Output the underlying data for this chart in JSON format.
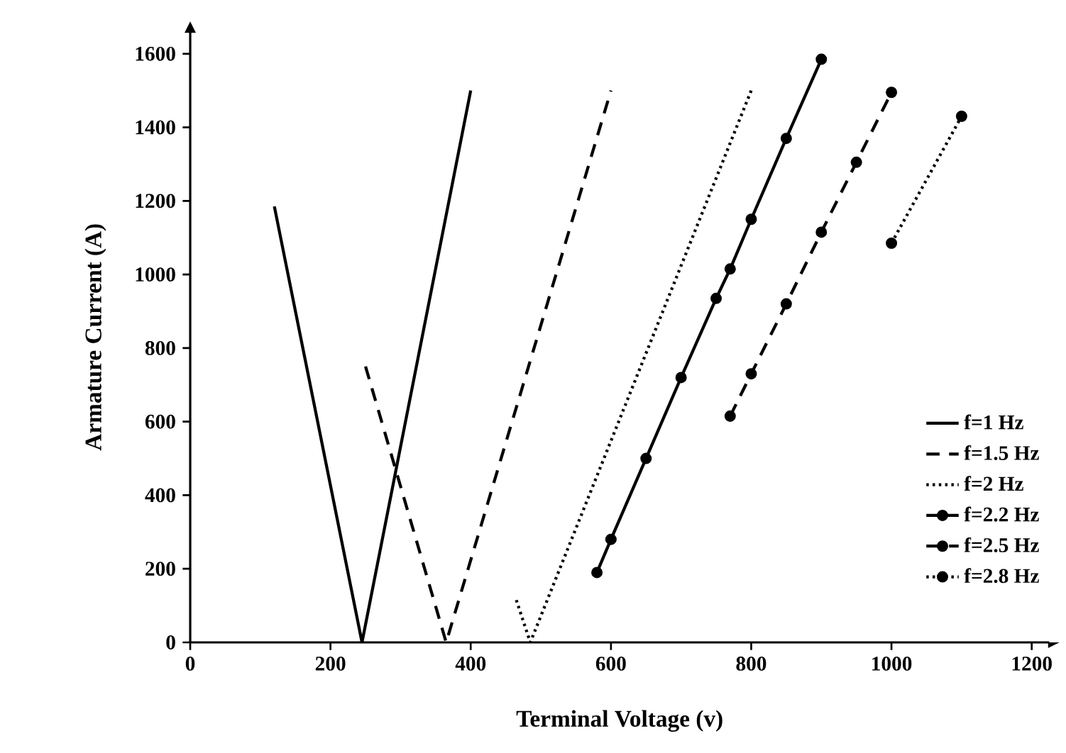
{
  "chart_data": {
    "type": "line",
    "xlabel": "Terminal Voltage (v)",
    "ylabel": "Armature Current (A)",
    "xlim": [
      0,
      1225
    ],
    "ylim": [
      0,
      1660
    ],
    "xticks": [
      0,
      200,
      400,
      600,
      800,
      1000,
      1200
    ],
    "yticks": [
      0,
      200,
      400,
      600,
      800,
      1000,
      1200,
      1400,
      1600
    ],
    "grid": false,
    "legend": "bottom right",
    "series": [
      {
        "name": "f=1 Hz",
        "color": "#000000",
        "line_style": "solid",
        "marker": "none",
        "x": [
          120,
          245,
          400
        ],
        "values": [
          1185,
          0,
          1500
        ]
      },
      {
        "name": "f=1.5 Hz",
        "color": "#000000",
        "line_style": "dashed",
        "marker": "none",
        "x": [
          250,
          365,
          600
        ],
        "values": [
          750,
          0,
          1500
        ]
      },
      {
        "name": "f=2 Hz",
        "color": "#000000",
        "line_style": "dotted",
        "marker": "none",
        "x": [
          465,
          485,
          800
        ],
        "values": [
          115,
          0,
          1500
        ]
      },
      {
        "name": "f=2.2 Hz",
        "color": "#000000",
        "line_style": "solid",
        "marker": "circle",
        "x": [
          580,
          600,
          650,
          700,
          750,
          770,
          800,
          850,
          900
        ],
        "values": [
          190,
          280,
          500,
          720,
          935,
          1015,
          1150,
          1370,
          1585
        ]
      },
      {
        "name": "f=2.5 Hz",
        "color": "#000000",
        "line_style": "dashed",
        "marker": "circle",
        "x": [
          770,
          800,
          850,
          900,
          950,
          1000
        ],
        "values": [
          615,
          730,
          920,
          1115,
          1305,
          1495
        ]
      },
      {
        "name": "f=2.8 Hz",
        "color": "#000000",
        "line_style": "dotted",
        "marker": "circle",
        "x": [
          1000,
          1100
        ],
        "values": [
          1085,
          1430
        ]
      }
    ]
  }
}
